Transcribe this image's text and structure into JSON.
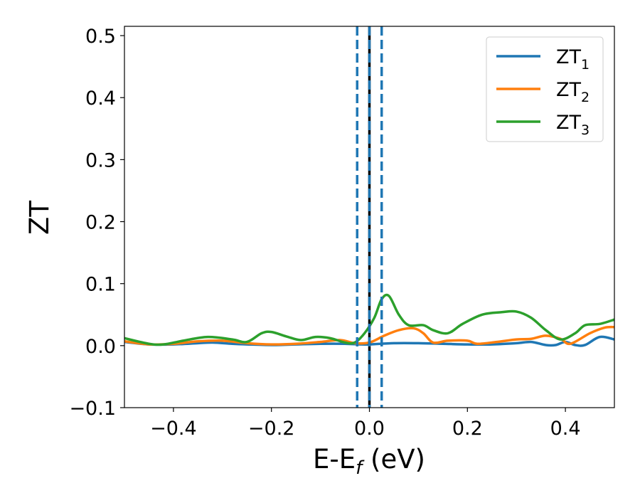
{
  "chart_data": {
    "type": "line",
    "xlabel": "E-E",
    "xlabel_sub": "f",
    "xlabel_unit": "(eV)",
    "ylabel": "ZT",
    "xlim": [
      -0.5,
      0.5
    ],
    "ylim": [
      -0.1,
      0.515
    ],
    "xticks": [
      -0.4,
      -0.2,
      0.0,
      0.2,
      0.4
    ],
    "xtick_labels": [
      "−0.4",
      "−0.2",
      "0.0",
      "0.2",
      "0.4"
    ],
    "yticks": [
      -0.1,
      0.0,
      0.1,
      0.2,
      0.3,
      0.4,
      0.5
    ],
    "ytick_labels": [
      "−0.1",
      "0.0",
      "0.1",
      "0.2",
      "0.3",
      "0.4",
      "0.5"
    ],
    "grid": false,
    "legend_position": "top-right",
    "vlines": [
      {
        "x": 0.0,
        "style": "solid",
        "color": "#000000"
      },
      {
        "x": -0.025,
        "style": "dashed",
        "color": "#1f77b4"
      },
      {
        "x": 0.0,
        "style": "dashed",
        "color": "#1f77b4"
      },
      {
        "x": 0.025,
        "style": "dashed",
        "color": "#1f77b4"
      }
    ],
    "series": [
      {
        "name": "ZT",
        "name_sub": "1",
        "color": "#1f77b4",
        "points": [
          [
            -0.5,
            0.006
          ],
          [
            -0.45,
            0.002
          ],
          [
            -0.4,
            0.002
          ],
          [
            -0.35,
            0.004
          ],
          [
            -0.32,
            0.005
          ],
          [
            -0.28,
            0.003
          ],
          [
            -0.25,
            0.002
          ],
          [
            -0.2,
            0.001
          ],
          [
            -0.15,
            0.002
          ],
          [
            -0.1,
            0.003
          ],
          [
            -0.05,
            0.003
          ],
          [
            -0.02,
            0.002
          ],
          [
            0.0,
            0.002
          ],
          [
            0.05,
            0.004
          ],
          [
            0.1,
            0.004
          ],
          [
            0.15,
            0.003
          ],
          [
            0.2,
            0.002
          ],
          [
            0.25,
            0.002
          ],
          [
            0.3,
            0.004
          ],
          [
            0.33,
            0.006
          ],
          [
            0.36,
            0.001
          ],
          [
            0.38,
            0.001
          ],
          [
            0.4,
            0.006
          ],
          [
            0.42,
            0.001
          ],
          [
            0.44,
            0.001
          ],
          [
            0.47,
            0.014
          ],
          [
            0.5,
            0.01
          ]
        ]
      },
      {
        "name": "ZT",
        "name_sub": "2",
        "color": "#ff7f0e",
        "points": [
          [
            -0.5,
            0.007
          ],
          [
            -0.45,
            0.002
          ],
          [
            -0.4,
            0.003
          ],
          [
            -0.35,
            0.007
          ],
          [
            -0.3,
            0.008
          ],
          [
            -0.25,
            0.004
          ],
          [
            -0.2,
            0.002
          ],
          [
            -0.15,
            0.003
          ],
          [
            -0.1,
            0.006
          ],
          [
            -0.06,
            0.009
          ],
          [
            -0.03,
            0.004
          ],
          [
            0.0,
            0.005
          ],
          [
            0.03,
            0.016
          ],
          [
            0.06,
            0.025
          ],
          [
            0.09,
            0.028
          ],
          [
            0.11,
            0.02
          ],
          [
            0.13,
            0.005
          ],
          [
            0.16,
            0.008
          ],
          [
            0.2,
            0.008
          ],
          [
            0.22,
            0.003
          ],
          [
            0.26,
            0.006
          ],
          [
            0.3,
            0.01
          ],
          [
            0.33,
            0.011
          ],
          [
            0.36,
            0.016
          ],
          [
            0.39,
            0.011
          ],
          [
            0.41,
            0.003
          ],
          [
            0.45,
            0.02
          ],
          [
            0.48,
            0.029
          ],
          [
            0.5,
            0.03
          ]
        ]
      },
      {
        "name": "ZT",
        "name_sub": "3",
        "color": "#2ca02c",
        "points": [
          [
            -0.5,
            0.012
          ],
          [
            -0.45,
            0.003
          ],
          [
            -0.42,
            0.002
          ],
          [
            -0.38,
            0.008
          ],
          [
            -0.33,
            0.014
          ],
          [
            -0.28,
            0.01
          ],
          [
            -0.25,
            0.006
          ],
          [
            -0.22,
            0.02
          ],
          [
            -0.2,
            0.022
          ],
          [
            -0.17,
            0.015
          ],
          [
            -0.14,
            0.009
          ],
          [
            -0.11,
            0.014
          ],
          [
            -0.08,
            0.012
          ],
          [
            -0.05,
            0.005
          ],
          [
            -0.03,
            0.005
          ],
          [
            -0.01,
            0.02
          ],
          [
            0.01,
            0.045
          ],
          [
            0.025,
            0.075
          ],
          [
            0.04,
            0.08
          ],
          [
            0.06,
            0.05
          ],
          [
            0.08,
            0.033
          ],
          [
            0.11,
            0.033
          ],
          [
            0.13,
            0.025
          ],
          [
            0.16,
            0.02
          ],
          [
            0.19,
            0.035
          ],
          [
            0.23,
            0.05
          ],
          [
            0.27,
            0.054
          ],
          [
            0.3,
            0.055
          ],
          [
            0.33,
            0.045
          ],
          [
            0.36,
            0.025
          ],
          [
            0.39,
            0.01
          ],
          [
            0.42,
            0.02
          ],
          [
            0.44,
            0.033
          ],
          [
            0.47,
            0.035
          ],
          [
            0.5,
            0.042
          ]
        ]
      }
    ]
  }
}
